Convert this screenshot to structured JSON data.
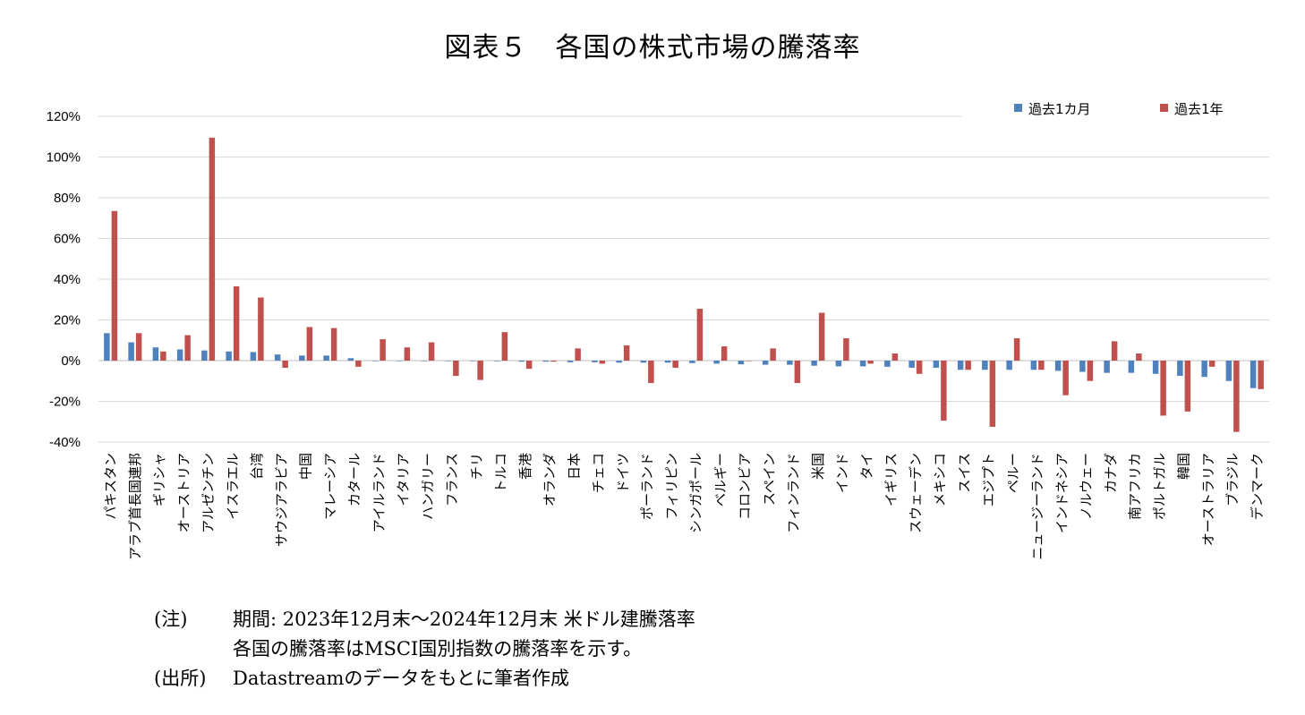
{
  "title": "図表５　各国の株式市場の騰落率",
  "notes": {
    "note_label": "(注)",
    "note_line1": "期間: 2023年12月末～2024年12月末 米ドル建騰落率",
    "note_line2": "各国の騰落率はMSCI国別指数の騰落率を示す。",
    "source_label": "(出所)",
    "source_text": "Datastreamのデータをもとに筆者作成"
  },
  "chart_data": {
    "type": "bar",
    "title": "",
    "xlabel": "",
    "ylabel": "",
    "ylim": [
      -40,
      120
    ],
    "y_ticks": [
      -40,
      -20,
      0,
      20,
      40,
      60,
      80,
      100,
      120
    ],
    "y_tick_labels": [
      "-40%",
      "-20%",
      "0%",
      "20%",
      "40%",
      "60%",
      "80%",
      "100%",
      "120%"
    ],
    "grid": true,
    "legend_position": "top-right",
    "categories": [
      "パキスタン",
      "アラブ首長国連邦",
      "ギリシャ",
      "オーストリア",
      "アルゼンチン",
      "イスラエル",
      "台湾",
      "サウジアラビア",
      "中国",
      "マレーシア",
      "カタール",
      "アイルランド",
      "イタリア",
      "ハンガリー",
      "フランス",
      "チリ",
      "トルコ",
      "香港",
      "オランダ",
      "日本",
      "チェコ",
      "ドイツ",
      "ポーランド",
      "フィリピン",
      "シンガポール",
      "ベルギー",
      "コロンビア",
      "スペイン",
      "フィンランド",
      "米国",
      "インド",
      "タイ",
      "イギリス",
      "スウェーデン",
      "メキシコ",
      "スイス",
      "エジプト",
      "ペルー",
      "ニュージーランド",
      "インドネシア",
      "ノルウェー",
      "カナダ",
      "南アフリカ",
      "ポルトガル",
      "韓国",
      "オーストラリア",
      "ブラジル",
      "デンマーク"
    ],
    "series": [
      {
        "name": "過去1カ月",
        "color": "#4f81bd",
        "values": [
          13.5,
          9,
          6.5,
          5.5,
          5,
          4.5,
          4.2,
          3,
          2.5,
          2.5,
          1.2,
          0,
          0,
          0,
          0,
          0,
          -0.3,
          -0.5,
          -0.5,
          -0.8,
          -0.8,
          -1,
          -1,
          -1,
          -1.2,
          -1.5,
          -1.8,
          -2,
          -2,
          -2.5,
          -2.8,
          -2.8,
          -3,
          -3.5,
          -3.5,
          -4.5,
          -4.5,
          -4.5,
          -4.5,
          -5,
          -5.5,
          -6,
          -6,
          -6.5,
          -7.5,
          -8,
          -10,
          -13.5
        ]
      },
      {
        "name": "過去1年",
        "color": "#c0504d",
        "values": [
          73.5,
          13.5,
          4.5,
          12.5,
          109.5,
          36.5,
          31,
          -3.5,
          16.5,
          16,
          -3,
          10.5,
          6.5,
          9,
          -7.5,
          -9.5,
          14,
          -4,
          -0.5,
          6,
          -1.5,
          7.5,
          -11,
          -3.5,
          25.5,
          7,
          0,
          6,
          -11,
          23.5,
          11,
          -1.5,
          3.5,
          -6.5,
          -29.5,
          -4.5,
          -32.5,
          11,
          -4.5,
          -17,
          -10,
          9.5,
          3.5,
          -27,
          -25,
          -3,
          -35,
          -14
        ]
      }
    ]
  }
}
